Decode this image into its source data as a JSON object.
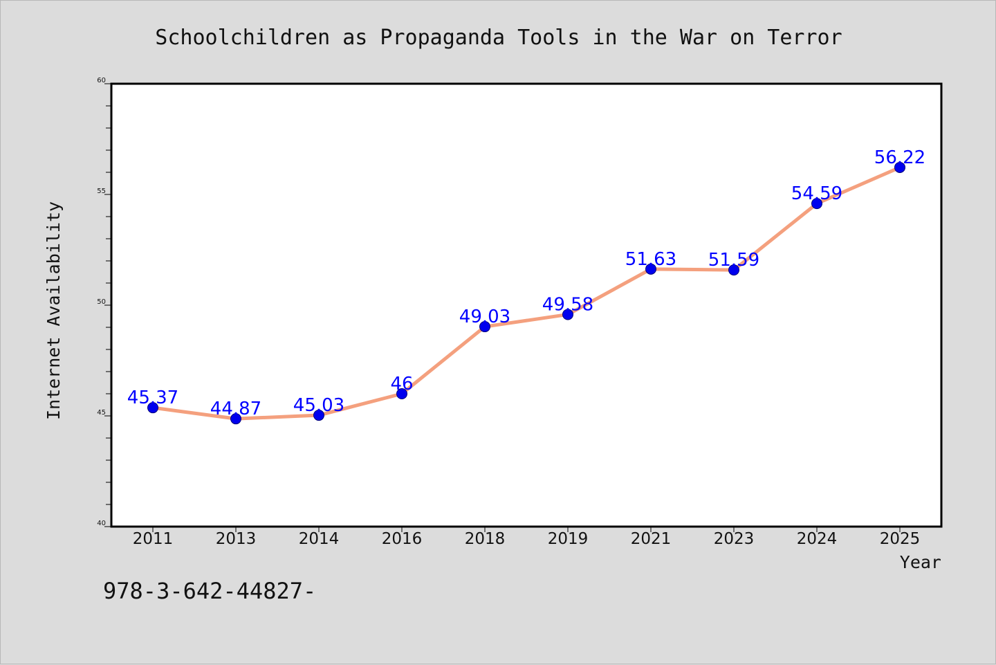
{
  "chart_data": {
    "type": "line",
    "title": "Schoolchildren as Propaganda Tools in the War on Terror",
    "xlabel": "Year",
    "ylabel": "Internet Availability",
    "categories": [
      "2011",
      "2013",
      "2014",
      "2016",
      "2018",
      "2019",
      "2021",
      "2023",
      "2024",
      "2025"
    ],
    "series": [
      {
        "values": [
          45.37,
          44.87,
          45.03,
          46,
          49.03,
          49.58,
          51.63,
          51.59,
          54.59,
          56.22
        ],
        "labels": [
          "45.37",
          "44.87",
          "45.03",
          "46",
          "49.03",
          "49.58",
          "51.63",
          "51.59",
          "54.59",
          "56.22"
        ],
        "line_color": "#f4a07e",
        "marker_color": "#0000ee"
      }
    ],
    "ylim": [
      40,
      60
    ],
    "yticks": [
      "40",
      "45",
      "50",
      "55",
      "60"
    ],
    "grid": false,
    "legend": "none"
  },
  "footer": {
    "text": "978-3-642-44827-"
  },
  "colors": {
    "background": "#dcdcdc",
    "plot_background": "#ffffff",
    "data_label": "#0000ff"
  }
}
